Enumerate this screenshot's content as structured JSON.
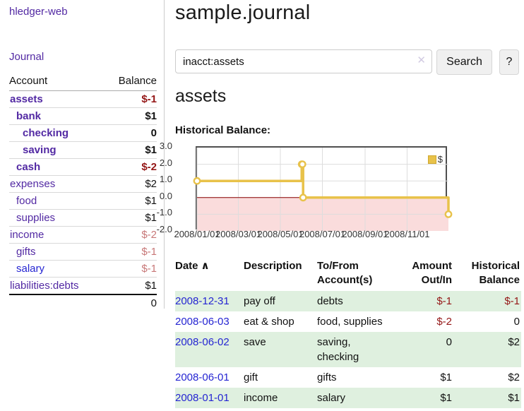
{
  "app": {
    "title": "hledger-web",
    "nav_journal": "Journal"
  },
  "sidebar": {
    "headers": {
      "account": "Account",
      "balance": "Balance"
    },
    "accounts": [
      {
        "name": "assets",
        "balance": "$-1",
        "depth": 1,
        "bold": true,
        "balance_class": "neg-strong",
        "link_color": "purple"
      },
      {
        "name": "bank",
        "balance": "$1",
        "depth": 2,
        "bold": true,
        "balance_class": "",
        "link_color": "purple"
      },
      {
        "name": "checking",
        "balance": "0",
        "depth": 3,
        "bold": true,
        "balance_class": "",
        "link_color": "purple"
      },
      {
        "name": "saving",
        "balance": "$1",
        "depth": 3,
        "bold": true,
        "balance_class": "",
        "link_color": "purple"
      },
      {
        "name": "cash",
        "balance": "$-2",
        "depth": 2,
        "bold": true,
        "balance_class": "neg-strong",
        "link_color": "purple"
      },
      {
        "name": "expenses",
        "balance": "$2",
        "depth": 1,
        "bold": false,
        "balance_class": "",
        "link_color": "purple"
      },
      {
        "name": "food",
        "balance": "$1",
        "depth": 2,
        "bold": false,
        "balance_class": "",
        "link_color": "purple"
      },
      {
        "name": "supplies",
        "balance": "$1",
        "depth": 2,
        "bold": false,
        "balance_class": "",
        "link_color": "purple"
      },
      {
        "name": "income",
        "balance": "$-2",
        "depth": 1,
        "bold": false,
        "balance_class": "neg-muted",
        "link_color": "purple"
      },
      {
        "name": "gifts",
        "balance": "$-1",
        "depth": 2,
        "bold": false,
        "balance_class": "neg-muted",
        "link_color": "purple"
      },
      {
        "name": "salary",
        "balance": "$-1",
        "depth": 2,
        "bold": false,
        "balance_class": "neg-muted",
        "link_color": "blue"
      },
      {
        "name": "liabilities:debts",
        "balance": "$1",
        "depth": 1,
        "bold": false,
        "balance_class": "",
        "link_color": "purple"
      }
    ],
    "total": "0"
  },
  "main": {
    "title": "sample.journal",
    "search": {
      "value": "inacct:assets",
      "clear_icon": "✕",
      "button_label": "Search",
      "help_label": "?"
    },
    "account_heading": "assets",
    "chart_label": "Historical Balance:"
  },
  "chart_data": {
    "type": "line",
    "step": true,
    "title": "Historical Balance",
    "legend_label": "$",
    "x_start": "2008-01-01",
    "x_end": "2008-12-31",
    "x_ticks": [
      "2008/01/01",
      "2008/03/01",
      "2008/05/01",
      "2008/07/01",
      "2008/09/01",
      "2008/11/01"
    ],
    "y_ticks": [
      "3.0",
      "2.0",
      "1.0",
      "0.0",
      "-1.0",
      "-2.0"
    ],
    "ylim": [
      -2,
      3
    ],
    "series": [
      {
        "name": "$",
        "points": [
          {
            "date": "2008-01-01",
            "value": 1
          },
          {
            "date": "2008-06-01",
            "value": 2
          },
          {
            "date": "2008-06-02",
            "value": 2
          },
          {
            "date": "2008-06-03",
            "value": 0
          },
          {
            "date": "2008-12-31",
            "value": -1
          }
        ]
      }
    ],
    "colors": {
      "line": "#e8c24a",
      "marker_fill": "#ffffff",
      "negative_region": "#fadcdc",
      "zero_line": "#8b0000",
      "grid": "#dddddd",
      "border": "#4f4f4f"
    }
  },
  "register": {
    "sort_column": "Date",
    "sort_icon": "∧",
    "headers": [
      "Date",
      "Description",
      "To/From Account(s)",
      "Amount Out/In",
      "Historical Balance"
    ],
    "rows": [
      {
        "date": "2008-12-31",
        "description": "pay off",
        "accounts": "debts",
        "amount": "$-1",
        "amount_class": "neg",
        "balance": "$-1",
        "balance_class": "neg"
      },
      {
        "date": "2008-06-03",
        "description": "eat & shop",
        "accounts": "food, supplies",
        "amount": "$-2",
        "amount_class": "neg",
        "balance": "0",
        "balance_class": ""
      },
      {
        "date": "2008-06-02",
        "description": "save",
        "accounts": "saving, checking",
        "amount": "0",
        "amount_class": "",
        "balance": "$2",
        "balance_class": ""
      },
      {
        "date": "2008-06-01",
        "description": "gift",
        "accounts": "gifts",
        "amount": "$1",
        "amount_class": "",
        "balance": "$2",
        "balance_class": ""
      },
      {
        "date": "2008-01-01",
        "description": "income",
        "accounts": "salary",
        "amount": "$1",
        "amount_class": "",
        "balance": "$1",
        "balance_class": ""
      }
    ]
  }
}
